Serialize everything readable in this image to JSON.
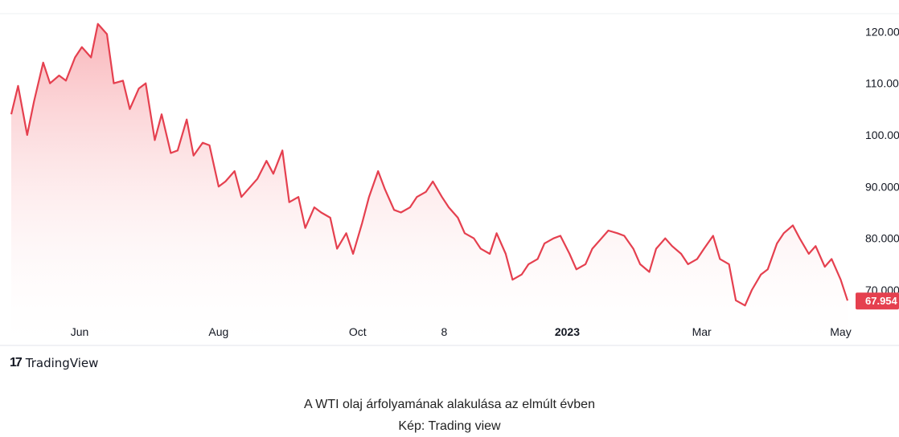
{
  "chart_data": {
    "type": "area",
    "x": [
      "2022-05-02",
      "2022-05-05",
      "2022-05-09",
      "2022-05-12",
      "2022-05-16",
      "2022-05-19",
      "2022-05-23",
      "2022-05-26",
      "2022-05-30",
      "2022-06-02",
      "2022-06-06",
      "2022-06-09",
      "2022-06-13",
      "2022-06-16",
      "2022-06-20",
      "2022-06-23",
      "2022-06-27",
      "2022-06-30",
      "2022-07-04",
      "2022-07-07",
      "2022-07-11",
      "2022-07-14",
      "2022-07-18",
      "2022-07-21",
      "2022-07-25",
      "2022-07-28",
      "2022-08-01",
      "2022-08-04",
      "2022-08-08",
      "2022-08-11",
      "2022-08-15",
      "2022-08-18",
      "2022-08-22",
      "2022-08-25",
      "2022-08-29",
      "2022-09-01",
      "2022-09-05",
      "2022-09-08",
      "2022-09-12",
      "2022-09-15",
      "2022-09-19",
      "2022-09-22",
      "2022-09-26",
      "2022-09-29",
      "2022-10-03",
      "2022-10-06",
      "2022-10-10",
      "2022-10-13",
      "2022-10-17",
      "2022-10-20",
      "2022-10-24",
      "2022-10-27",
      "2022-10-31",
      "2022-11-03",
      "2022-11-07",
      "2022-11-10",
      "2022-11-14",
      "2022-11-17",
      "2022-11-21",
      "2022-11-24",
      "2022-11-28",
      "2022-12-01",
      "2022-12-05",
      "2022-12-08",
      "2022-12-12",
      "2022-12-15",
      "2022-12-19",
      "2022-12-22",
      "2022-12-26",
      "2022-12-29",
      "2023-01-02",
      "2023-01-05",
      "2023-01-09",
      "2023-01-12",
      "2023-01-16",
      "2023-01-19",
      "2023-01-23",
      "2023-01-26",
      "2023-01-30",
      "2023-02-02",
      "2023-02-06",
      "2023-02-09",
      "2023-02-13",
      "2023-02-16",
      "2023-02-20",
      "2023-02-23",
      "2023-02-27",
      "2023-03-02",
      "2023-03-06",
      "2023-03-09",
      "2023-03-13",
      "2023-03-16",
      "2023-03-20",
      "2023-03-23",
      "2023-03-27",
      "2023-03-30",
      "2023-04-03",
      "2023-04-06",
      "2023-04-10",
      "2023-04-13",
      "2023-04-17",
      "2023-04-20",
      "2023-04-24",
      "2023-04-27",
      "2023-05-01",
      "2023-05-04"
    ],
    "values": [
      104.0,
      109.5,
      100.0,
      106.5,
      114.0,
      110.0,
      111.5,
      110.5,
      115.0,
      117.0,
      115.0,
      121.5,
      119.5,
      110.0,
      110.5,
      105.0,
      109.0,
      110.0,
      99.0,
      104.0,
      96.5,
      97.0,
      103.0,
      96.0,
      98.5,
      98.0,
      90.0,
      91.0,
      93.0,
      88.0,
      90.0,
      91.5,
      95.0,
      92.5,
      97.0,
      87.0,
      88.0,
      82.0,
      86.0,
      85.0,
      84.0,
      78.0,
      81.0,
      77.0,
      83.0,
      88.0,
      93.0,
      89.5,
      85.5,
      85.0,
      86.0,
      88.0,
      89.0,
      91.0,
      88.0,
      86.0,
      84.0,
      81.0,
      80.0,
      78.0,
      77.0,
      81.0,
      77.0,
      72.0,
      73.0,
      75.0,
      76.0,
      79.0,
      80.0,
      80.5,
      77.0,
      74.0,
      75.0,
      78.0,
      80.0,
      81.5,
      81.0,
      80.5,
      78.0,
      75.0,
      73.5,
      78.0,
      80.0,
      78.5,
      77.0,
      75.0,
      76.0,
      78.0,
      80.5,
      76.0,
      75.0,
      68.0,
      67.0,
      70.0,
      73.0,
      74.0,
      79.0,
      81.0,
      82.5,
      80.0,
      77.0,
      78.5,
      74.5,
      76.0,
      72.0,
      67.95
    ],
    "ylim": [
      65.5,
      123.0
    ],
    "yticks": [
      "120.000",
      "110.000",
      "100.000",
      "90.000",
      "80.000",
      "70.000"
    ],
    "ytick_values": [
      120,
      110,
      100,
      90,
      80,
      70
    ],
    "xticks": [
      {
        "label": "Jun",
        "date": "2022-06-01",
        "bold": false
      },
      {
        "label": "Aug",
        "date": "2022-08-01",
        "bold": false
      },
      {
        "label": "Oct",
        "date": "2022-10-01",
        "bold": false
      },
      {
        "label": "8",
        "date": "2022-11-08",
        "bold": false
      },
      {
        "label": "2023",
        "date": "2023-01-01",
        "bold": true
      },
      {
        "label": "Mar",
        "date": "2023-03-01",
        "bold": false
      },
      {
        "label": "May",
        "date": "2023-05-01",
        "bold": false
      }
    ],
    "last_value_label": "67.954",
    "line_color": "#e5404f",
    "fill_color": "#f7c3c6",
    "grid": false
  },
  "logo": {
    "name": "tradingview-logo-icon",
    "text": "TradingView"
  },
  "caption": {
    "line1": "A WTI olaj árfolyamának alakulása az elmúlt évben",
    "line2": "Kép: Trading view"
  }
}
